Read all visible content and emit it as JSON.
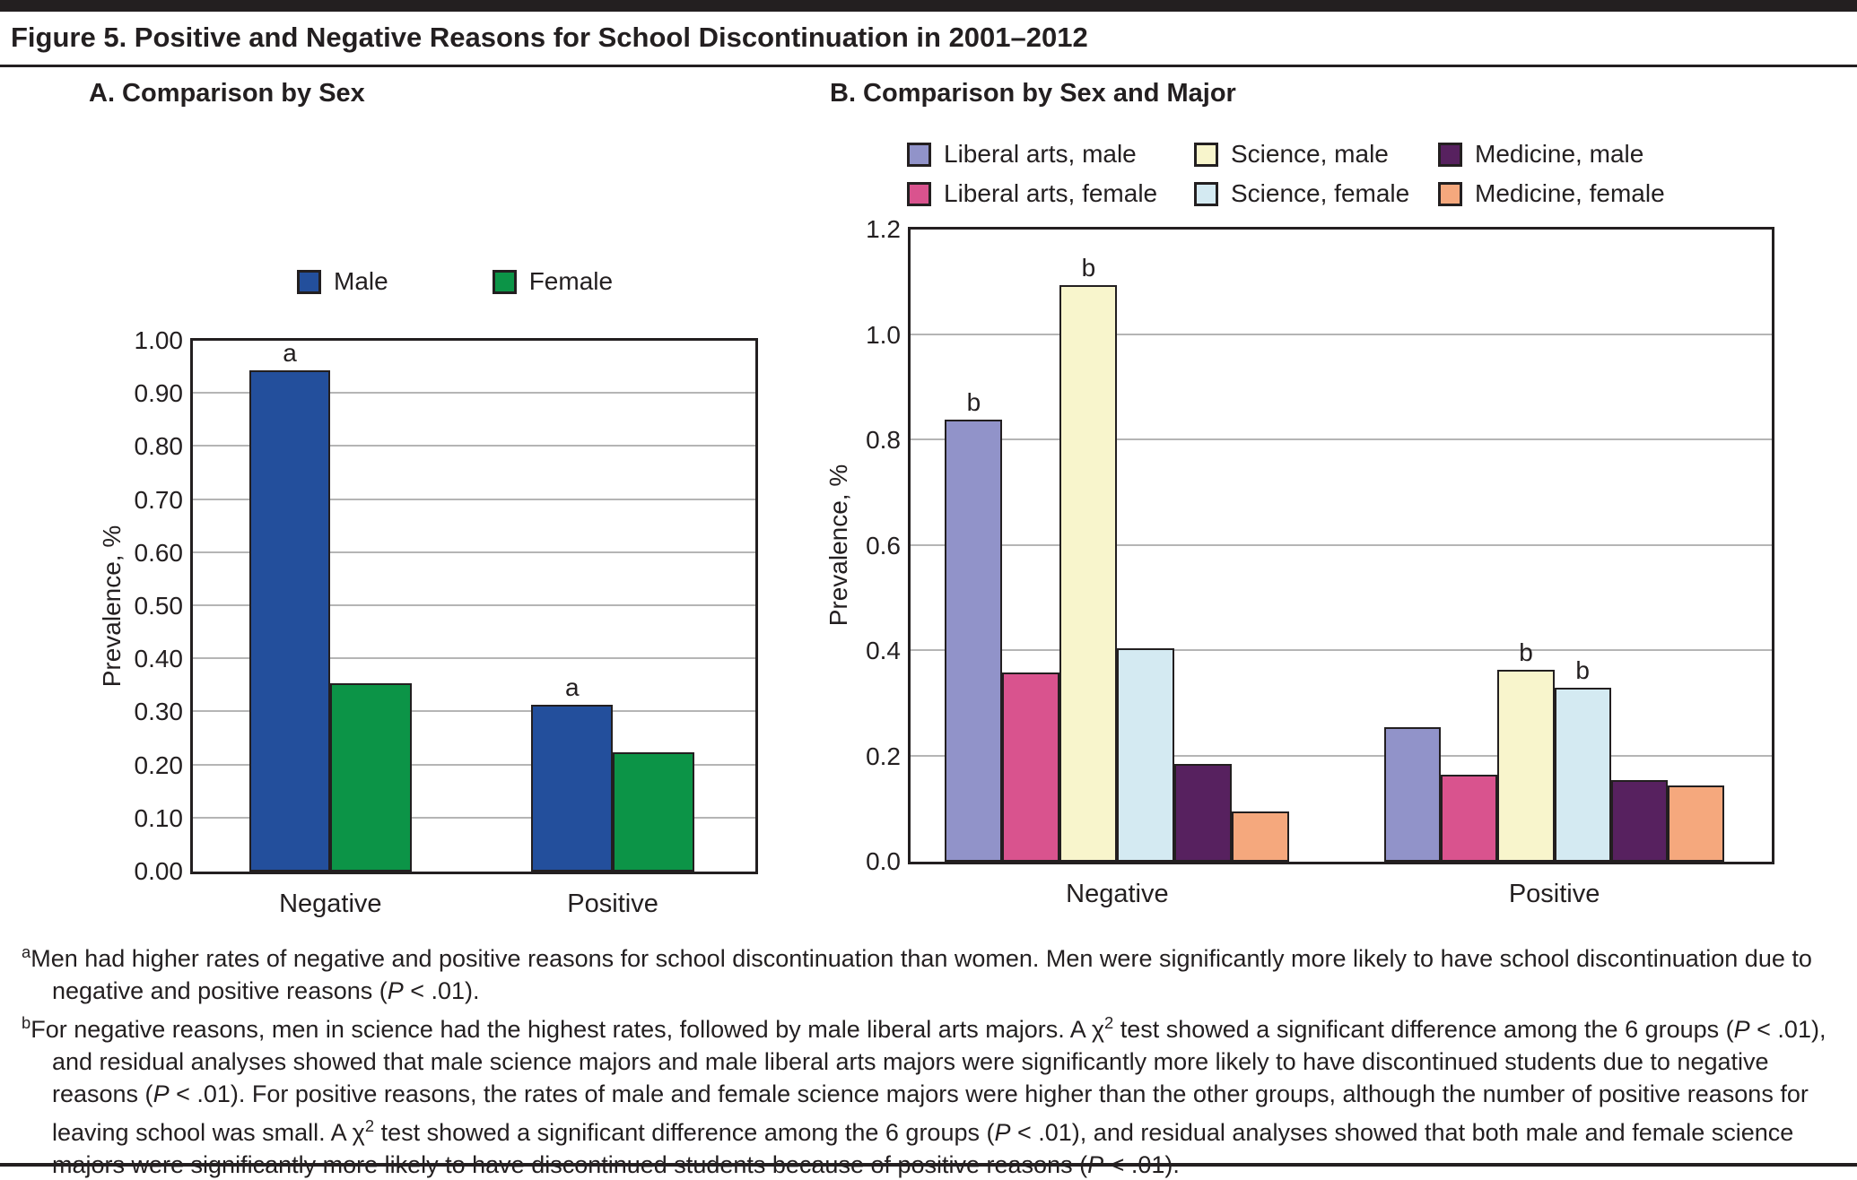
{
  "title": "Figure 5. Positive and Negative Reasons for School Discontinuation in 2001–2012",
  "colors": {
    "rule": "#231f20",
    "gridline": "#b5b5b5",
    "male_blue": "#234f9c",
    "female_green": "#0c9447",
    "liberal_arts_male": "#9193c9",
    "liberal_arts_female": "#d9538e",
    "science_male": "#f8f5cc",
    "science_female": "#d4eaf2",
    "medicine_male": "#57215f",
    "medicine_female": "#f5a87d"
  },
  "chart_data": [
    {
      "type": "bar",
      "title": "A. Comparison by Sex",
      "categories": [
        "Negative",
        "Positive"
      ],
      "series": [
        {
          "name": "Male",
          "color": "#234f9c",
          "values": [
            0.945,
            0.315
          ],
          "annotations": [
            "a",
            "a"
          ]
        },
        {
          "name": "Female",
          "color": "#0c9447",
          "values": [
            0.355,
            0.225
          ],
          "annotations": [
            "",
            ""
          ]
        }
      ],
      "xlabel": "",
      "ylabel": "Prevalence, %",
      "ylim": [
        0,
        1.0
      ],
      "yticks": [
        "0.00",
        "0.10",
        "0.20",
        "0.30",
        "0.40",
        "0.50",
        "0.60",
        "0.70",
        "0.80",
        "0.90",
        "1.00"
      ],
      "grid": true,
      "legend_position": "top"
    },
    {
      "type": "bar",
      "title": "B. Comparison by Sex and Major",
      "categories": [
        "Negative",
        "Positive"
      ],
      "series": [
        {
          "name": "Liberal arts, male",
          "color": "#9193c9",
          "values": [
            0.84,
            0.255
          ],
          "annotations": [
            "b",
            ""
          ]
        },
        {
          "name": "Liberal arts, female",
          "color": "#d9538e",
          "values": [
            0.36,
            0.165
          ],
          "annotations": [
            "",
            ""
          ]
        },
        {
          "name": "Science, male",
          "color": "#f8f5cc",
          "values": [
            1.095,
            0.365
          ],
          "annotations": [
            "b",
            "b"
          ]
        },
        {
          "name": "Science, female",
          "color": "#d4eaf2",
          "values": [
            0.405,
            0.33
          ],
          "annotations": [
            "",
            "b"
          ]
        },
        {
          "name": "Medicine, male",
          "color": "#57215f",
          "values": [
            0.185,
            0.155
          ],
          "annotations": [
            "",
            ""
          ]
        },
        {
          "name": "Medicine, female",
          "color": "#f5a87d",
          "values": [
            0.095,
            0.145
          ],
          "annotations": [
            "",
            ""
          ]
        }
      ],
      "xlabel": "",
      "ylabel": "Prevalence, %",
      "ylim": [
        0,
        1.2
      ],
      "yticks": [
        "0.0",
        "0.2",
        "0.4",
        "0.6",
        "0.8",
        "1.0",
        "1.2"
      ],
      "grid": true,
      "legend_position": "top"
    }
  ],
  "footnotes": [
    {
      "marker": "a",
      "segments": [
        {
          "t": "text",
          "v": "Men had higher rates of negative and positive reasons for school discontinuation than women. Men were significantly more likely to have school discontinuation due to negative and positive reasons ("
        },
        {
          "t": "i",
          "v": "P"
        },
        {
          "t": "text",
          "v": " < .01)."
        }
      ]
    },
    {
      "marker": "b",
      "segments": [
        {
          "t": "text",
          "v": "For negative reasons, men in science had the highest rates, followed by male liberal arts majors. A χ"
        },
        {
          "t": "sup",
          "v": "2"
        },
        {
          "t": "text",
          "v": " test showed a significant difference among the 6 groups ("
        },
        {
          "t": "i",
          "v": "P"
        },
        {
          "t": "text",
          "v": " < .01), and residual analyses showed that male science majors and male liberal arts majors were significantly more likely to have discontinued students due to negative reasons ("
        },
        {
          "t": "i",
          "v": "P"
        },
        {
          "t": "text",
          "v": " < .01). For positive reasons, the rates of male and female science majors were higher than the other groups, although the number of positive reasons for leaving school was small. A χ"
        },
        {
          "t": "sup",
          "v": "2"
        },
        {
          "t": "text",
          "v": " test showed a significant difference among the 6 groups ("
        },
        {
          "t": "i",
          "v": "P"
        },
        {
          "t": "text",
          "v": " < .01), and residual analyses showed that both male and female science majors were significantly more likely to have discontinued students because of positive reasons ("
        },
        {
          "t": "i",
          "v": "P"
        },
        {
          "t": "text",
          "v": " < .01)."
        }
      ]
    }
  ]
}
